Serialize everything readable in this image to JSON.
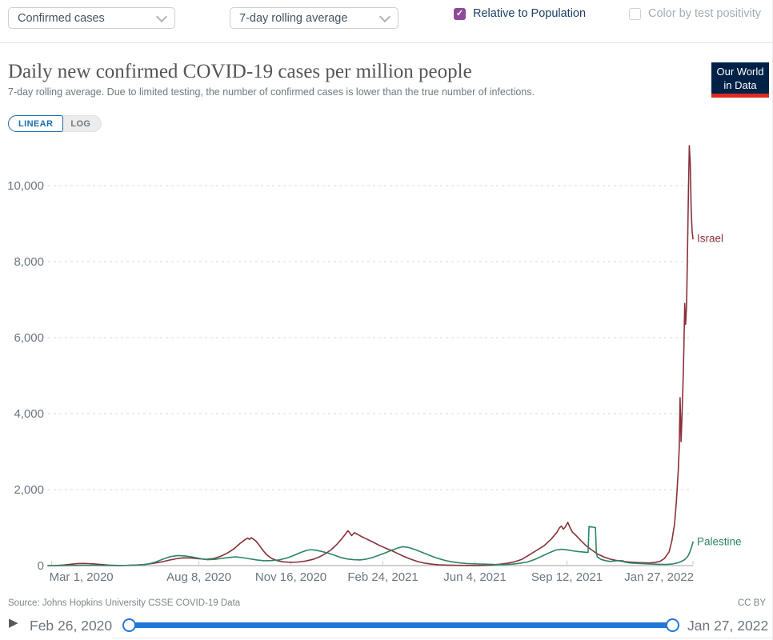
{
  "colors": {
    "accent_purple": "#8d4b9a",
    "navy_text": "#1d3d63",
    "toggle_blue": "#1d6dab",
    "slider_blue": "#2277d6",
    "logo_navy": "#002147",
    "logo_red": "#dc2a20"
  },
  "controls": {
    "metric_dropdown": {
      "value": "Confirmed cases"
    },
    "interval_dropdown": {
      "value": "7-day rolling average"
    },
    "relative_checkbox": {
      "label": "Relative to Population",
      "checked": true
    },
    "positivity_checkbox": {
      "label": "Color by test positivity",
      "checked": false
    }
  },
  "header": {
    "logo": {
      "line1": "Our World",
      "line2": "in Data"
    }
  },
  "scale_toggle": {
    "linear": "LINEAR",
    "log": "LOG",
    "active": "LINEAR"
  },
  "footer": {
    "source": "Source: Johns Hopkins University CSSE COVID-19 Data",
    "license": "CC BY"
  },
  "timeline": {
    "start": "Feb 26, 2020",
    "end": "Jan 27, 2022"
  },
  "chart_data": {
    "type": "line",
    "title": "Daily new confirmed COVID-19 cases per million people",
    "subtitle": "7-day rolling average. Due to limited testing, the number of confirmed cases is lower than the true number of infections.",
    "xlabel": "",
    "ylabel": "",
    "grid": "horizontal-dashed",
    "legend": "end-of-line-labels",
    "x_domain": [
      "2020-02-26",
      "2022-01-27"
    ],
    "ylim": [
      0,
      11300
    ],
    "y_ticks": [
      {
        "value": 0,
        "label": "0"
      },
      {
        "value": 2000,
        "label": "2,000"
      },
      {
        "value": 4000,
        "label": "4,000"
      },
      {
        "value": 6000,
        "label": "6,000"
      },
      {
        "value": 8000,
        "label": "8,000"
      },
      {
        "value": 10000,
        "label": "10,000"
      }
    ],
    "x_ticks": [
      {
        "date": "2020-03-01",
        "label": "Mar 1, 2020"
      },
      {
        "date": "2020-08-08",
        "label": "Aug 8, 2020"
      },
      {
        "date": "2020-11-16",
        "label": "Nov 16, 2020"
      },
      {
        "date": "2021-02-24",
        "label": "Feb 24, 2021"
      },
      {
        "date": "2021-06-04",
        "label": "Jun 4, 2021"
      },
      {
        "date": "2021-09-12",
        "label": "Sep 12, 2021"
      },
      {
        "date": "2022-01-27",
        "label": "Jan 27, 2022"
      }
    ],
    "series": [
      {
        "name": "Israel",
        "color": "#883039",
        "points": [
          [
            "2020-02-26",
            0
          ],
          [
            "2020-03-05",
            3
          ],
          [
            "2020-03-14",
            14
          ],
          [
            "2020-03-22",
            35
          ],
          [
            "2020-03-29",
            50
          ],
          [
            "2020-04-04",
            56
          ],
          [
            "2020-04-10",
            52
          ],
          [
            "2020-04-16",
            45
          ],
          [
            "2020-04-24",
            28
          ],
          [
            "2020-05-02",
            12
          ],
          [
            "2020-05-12",
            5
          ],
          [
            "2020-05-22",
            6
          ],
          [
            "2020-06-01",
            14
          ],
          [
            "2020-06-10",
            28
          ],
          [
            "2020-06-20",
            62
          ],
          [
            "2020-06-28",
            95
          ],
          [
            "2020-07-06",
            140
          ],
          [
            "2020-07-14",
            180
          ],
          [
            "2020-07-22",
            205
          ],
          [
            "2020-07-30",
            200
          ],
          [
            "2020-08-08",
            178
          ],
          [
            "2020-08-16",
            165
          ],
          [
            "2020-08-24",
            185
          ],
          [
            "2020-09-01",
            250
          ],
          [
            "2020-09-08",
            330
          ],
          [
            "2020-09-15",
            440
          ],
          [
            "2020-09-22",
            590
          ],
          [
            "2020-09-27",
            680
          ],
          [
            "2020-09-30",
            725
          ],
          [
            "2020-10-02",
            690
          ],
          [
            "2020-10-04",
            735
          ],
          [
            "2020-10-06",
            700
          ],
          [
            "2020-10-09",
            645
          ],
          [
            "2020-10-13",
            520
          ],
          [
            "2020-10-17",
            390
          ],
          [
            "2020-10-21",
            280
          ],
          [
            "2020-10-26",
            190
          ],
          [
            "2020-11-01",
            130
          ],
          [
            "2020-11-08",
            100
          ],
          [
            "2020-11-16",
            85
          ],
          [
            "2020-11-24",
            95
          ],
          [
            "2020-12-02",
            120
          ],
          [
            "2020-12-10",
            165
          ],
          [
            "2020-12-18",
            240
          ],
          [
            "2020-12-24",
            320
          ],
          [
            "2020-12-30",
            420
          ],
          [
            "2021-01-05",
            560
          ],
          [
            "2021-01-10",
            700
          ],
          [
            "2021-01-14",
            820
          ],
          [
            "2021-01-17",
            920
          ],
          [
            "2021-01-19",
            860
          ],
          [
            "2021-01-21",
            790
          ],
          [
            "2021-01-24",
            865
          ],
          [
            "2021-01-27",
            830
          ],
          [
            "2021-02-01",
            760
          ],
          [
            "2021-02-07",
            690
          ],
          [
            "2021-02-13",
            620
          ],
          [
            "2021-02-19",
            545
          ],
          [
            "2021-02-26",
            470
          ],
          [
            "2021-03-05",
            400
          ],
          [
            "2021-03-12",
            320
          ],
          [
            "2021-03-19",
            240
          ],
          [
            "2021-03-26",
            170
          ],
          [
            "2021-04-03",
            105
          ],
          [
            "2021-04-10",
            65
          ],
          [
            "2021-04-18",
            38
          ],
          [
            "2021-04-26",
            22
          ],
          [
            "2021-05-05",
            12
          ],
          [
            "2021-05-15",
            6
          ],
          [
            "2021-05-25",
            4
          ],
          [
            "2021-06-05",
            3
          ],
          [
            "2021-06-15",
            6
          ],
          [
            "2021-06-23",
            16
          ],
          [
            "2021-07-01",
            35
          ],
          [
            "2021-07-09",
            62
          ],
          [
            "2021-07-17",
            100
          ],
          [
            "2021-07-25",
            165
          ],
          [
            "2021-08-02",
            280
          ],
          [
            "2021-08-10",
            400
          ],
          [
            "2021-08-18",
            520
          ],
          [
            "2021-08-26",
            700
          ],
          [
            "2021-09-01",
            870
          ],
          [
            "2021-09-04",
            1000
          ],
          [
            "2021-09-06",
            1040
          ],
          [
            "2021-09-08",
            960
          ],
          [
            "2021-09-10",
            1010
          ],
          [
            "2021-09-13",
            1140
          ],
          [
            "2021-09-15",
            1020
          ],
          [
            "2021-09-18",
            880
          ],
          [
            "2021-09-22",
            790
          ],
          [
            "2021-09-27",
            660
          ],
          [
            "2021-10-03",
            520
          ],
          [
            "2021-10-09",
            410
          ],
          [
            "2021-10-15",
            310
          ],
          [
            "2021-10-22",
            230
          ],
          [
            "2021-10-29",
            170
          ],
          [
            "2021-11-05",
            135
          ],
          [
            "2021-11-12",
            110
          ],
          [
            "2021-11-19",
            95
          ],
          [
            "2021-11-26",
            85
          ],
          [
            "2021-12-03",
            75
          ],
          [
            "2021-12-10",
            70
          ],
          [
            "2021-12-16",
            80
          ],
          [
            "2021-12-22",
            110
          ],
          [
            "2021-12-27",
            190
          ],
          [
            "2022-01-01",
            360
          ],
          [
            "2022-01-04",
            650
          ],
          [
            "2022-01-07",
            1100
          ],
          [
            "2022-01-09",
            1700
          ],
          [
            "2022-01-11",
            2500
          ],
          [
            "2022-01-12",
            3100
          ],
          [
            "2022-01-13",
            4420
          ],
          [
            "2022-01-14",
            3260
          ],
          [
            "2022-01-15",
            3900
          ],
          [
            "2022-01-16",
            4700
          ],
          [
            "2022-01-17",
            5600
          ],
          [
            "2022-01-18",
            6900
          ],
          [
            "2022-01-19",
            6350
          ],
          [
            "2022-01-20",
            6850
          ],
          [
            "2022-01-21",
            8200
          ],
          [
            "2022-01-22",
            9800
          ],
          [
            "2022-01-23",
            11050
          ],
          [
            "2022-01-24",
            10600
          ],
          [
            "2022-01-25",
            9400
          ],
          [
            "2022-01-26",
            8800
          ],
          [
            "2022-01-27",
            8600
          ]
        ]
      },
      {
        "name": "Palestine",
        "color": "#2c8465",
        "points": [
          [
            "2020-02-26",
            0
          ],
          [
            "2020-03-10",
            1
          ],
          [
            "2020-03-25",
            4
          ],
          [
            "2020-04-05",
            7
          ],
          [
            "2020-04-15",
            9
          ],
          [
            "2020-04-25",
            5
          ],
          [
            "2020-05-10",
            3
          ],
          [
            "2020-05-25",
            6
          ],
          [
            "2020-06-05",
            18
          ],
          [
            "2020-06-14",
            42
          ],
          [
            "2020-06-22",
            95
          ],
          [
            "2020-06-30",
            170
          ],
          [
            "2020-07-08",
            235
          ],
          [
            "2020-07-16",
            265
          ],
          [
            "2020-07-24",
            255
          ],
          [
            "2020-08-01",
            225
          ],
          [
            "2020-08-09",
            185
          ],
          [
            "2020-08-17",
            155
          ],
          [
            "2020-08-25",
            165
          ],
          [
            "2020-09-02",
            190
          ],
          [
            "2020-09-10",
            215
          ],
          [
            "2020-09-17",
            230
          ],
          [
            "2020-09-24",
            210
          ],
          [
            "2020-10-02",
            180
          ],
          [
            "2020-10-10",
            150
          ],
          [
            "2020-10-18",
            128
          ],
          [
            "2020-10-26",
            132
          ],
          [
            "2020-11-03",
            150
          ],
          [
            "2020-11-11",
            195
          ],
          [
            "2020-11-19",
            265
          ],
          [
            "2020-11-26",
            340
          ],
          [
            "2020-12-03",
            400
          ],
          [
            "2020-12-08",
            420
          ],
          [
            "2020-12-13",
            405
          ],
          [
            "2020-12-19",
            375
          ],
          [
            "2020-12-26",
            330
          ],
          [
            "2021-01-02",
            275
          ],
          [
            "2021-01-09",
            215
          ],
          [
            "2021-01-16",
            175
          ],
          [
            "2021-01-23",
            155
          ],
          [
            "2021-01-30",
            150
          ],
          [
            "2021-02-06",
            170
          ],
          [
            "2021-02-13",
            215
          ],
          [
            "2021-02-20",
            275
          ],
          [
            "2021-02-27",
            340
          ],
          [
            "2021-03-06",
            410
          ],
          [
            "2021-03-13",
            470
          ],
          [
            "2021-03-18",
            500
          ],
          [
            "2021-03-24",
            475
          ],
          [
            "2021-03-31",
            420
          ],
          [
            "2021-04-08",
            345
          ],
          [
            "2021-04-16",
            265
          ],
          [
            "2021-04-24",
            195
          ],
          [
            "2021-05-02",
            140
          ],
          [
            "2021-05-10",
            100
          ],
          [
            "2021-05-18",
            72
          ],
          [
            "2021-05-26",
            55
          ],
          [
            "2021-06-05",
            45
          ],
          [
            "2021-06-15",
            38
          ],
          [
            "2021-06-25",
            30
          ],
          [
            "2021-07-05",
            28
          ],
          [
            "2021-07-15",
            38
          ],
          [
            "2021-07-23",
            60
          ],
          [
            "2021-07-31",
            95
          ],
          [
            "2021-08-08",
            160
          ],
          [
            "2021-08-16",
            250
          ],
          [
            "2021-08-24",
            340
          ],
          [
            "2021-08-31",
            410
          ],
          [
            "2021-09-06",
            430
          ],
          [
            "2021-09-12",
            415
          ],
          [
            "2021-09-18",
            390
          ],
          [
            "2021-09-24",
            370
          ],
          [
            "2021-09-30",
            355
          ],
          [
            "2021-10-05",
            345
          ],
          [
            "2021-10-06",
            1030
          ],
          [
            "2021-10-13",
            1000
          ],
          [
            "2021-10-14",
            330
          ],
          [
            "2021-10-15",
            230
          ],
          [
            "2021-10-19",
            165
          ],
          [
            "2021-10-24",
            130
          ],
          [
            "2021-10-29",
            110
          ],
          [
            "2021-11-03",
            125
          ],
          [
            "2021-11-07",
            130
          ],
          [
            "2021-11-12",
            128
          ],
          [
            "2021-11-14",
            90
          ],
          [
            "2021-11-20",
            70
          ],
          [
            "2021-11-27",
            58
          ],
          [
            "2021-12-05",
            48
          ],
          [
            "2021-12-13",
            40
          ],
          [
            "2021-12-21",
            33
          ],
          [
            "2021-12-29",
            32
          ],
          [
            "2022-01-05",
            45
          ],
          [
            "2022-01-10",
            70
          ],
          [
            "2022-01-14",
            105
          ],
          [
            "2022-01-18",
            160
          ],
          [
            "2022-01-21",
            230
          ],
          [
            "2022-01-23",
            320
          ],
          [
            "2022-01-25",
            450
          ],
          [
            "2022-01-27",
            620
          ]
        ]
      }
    ]
  }
}
